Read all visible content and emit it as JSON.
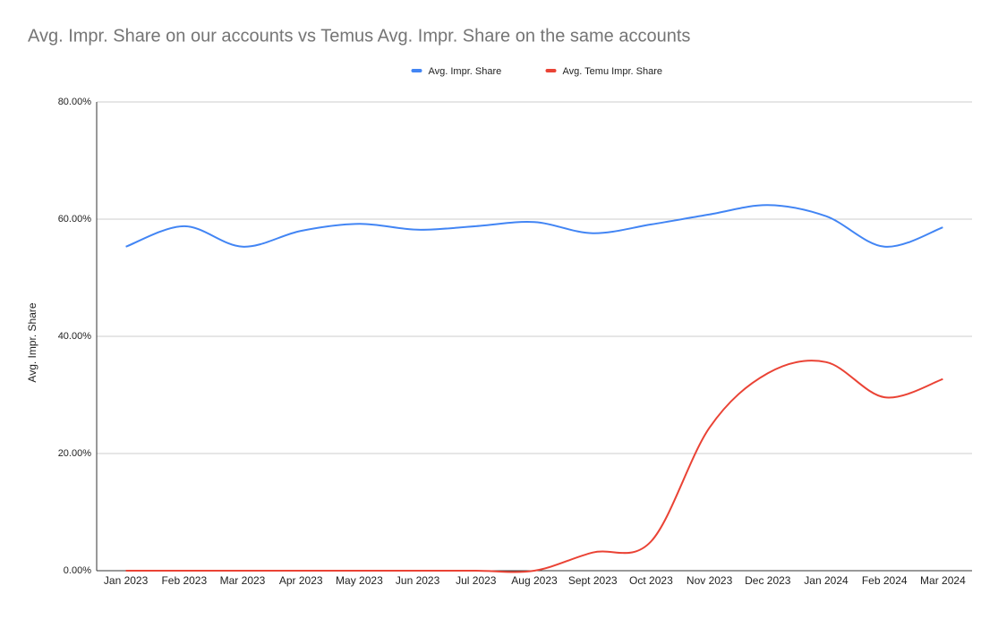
{
  "chart_data": {
    "type": "line",
    "title": "Avg. Impr. Share on our accounts vs Temus Avg. Impr. Share on the same accounts",
    "y_label": "Avg. Impr. Share",
    "categories": [
      "Jan 2023",
      "Feb 2023",
      "Mar 2023",
      "Apr 2023",
      "May 2023",
      "Jun 2023",
      "Jul 2023",
      "Aug 2023",
      "Sept 2023",
      "Oct 2023",
      "Nov 2023",
      "Dec 2023",
      "Jan 2024",
      "Feb 2024",
      "Mar 2024"
    ],
    "series": [
      {
        "name": "Avg. Impr. Share",
        "color": "#4285f4",
        "values": [
          55.3,
          58.8,
          55.3,
          58.0,
          59.2,
          58.2,
          58.8,
          59.5,
          57.6,
          59.1,
          60.8,
          62.4,
          60.5,
          55.3,
          58.6
        ]
      },
      {
        "name": "Avg. Temu Impr. Share",
        "color": "#ea4335",
        "values": [
          0,
          0,
          0,
          0,
          0,
          0,
          0,
          0,
          3.1,
          5.0,
          24.4,
          33.7,
          35.6,
          29.6,
          32.7
        ]
      }
    ],
    "ylim": [
      0,
      80
    ],
    "yticks": [
      {
        "value": 0,
        "label": "0.00%"
      },
      {
        "value": 20,
        "label": "20.00%"
      },
      {
        "value": 40,
        "label": "40.00%"
      },
      {
        "value": 60,
        "label": "60.00%"
      },
      {
        "value": 80,
        "label": "80.00%"
      }
    ],
    "grid": true,
    "smooth": true,
    "legend": "top"
  }
}
